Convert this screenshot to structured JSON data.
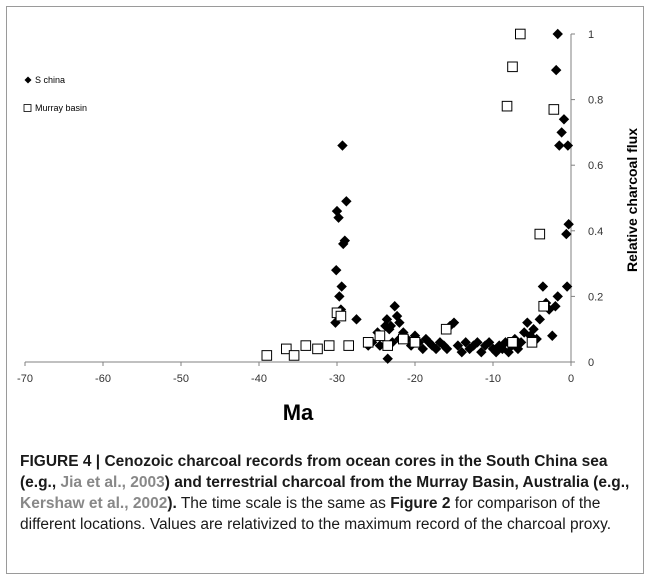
{
  "chart_data": {
    "type": "scatter",
    "xlabel": "Ma",
    "ylabel": "Relative charcoal flux",
    "xlim": [
      -70,
      0
    ],
    "ylim": [
      0,
      1
    ],
    "x_ticks": [
      -70,
      -60,
      -50,
      -40,
      -30,
      -20,
      -10,
      0
    ],
    "y_ticks": [
      0,
      0.2,
      0.4,
      0.6,
      0.8,
      1
    ],
    "y_axis_side": "right",
    "legend_position": "top-left",
    "grid": false,
    "series": [
      {
        "name": "S china",
        "marker": "filled-diamond",
        "color": "#000000",
        "points": [
          [
            -29.3,
            0.66
          ],
          [
            -28.8,
            0.49
          ],
          [
            -29.0,
            0.37
          ],
          [
            -29.2,
            0.36
          ],
          [
            -29.8,
            0.44
          ],
          [
            -30.0,
            0.46
          ],
          [
            -30.1,
            0.28
          ],
          [
            -29.4,
            0.23
          ],
          [
            -29.7,
            0.2
          ],
          [
            -29.5,
            0.16
          ],
          [
            -30.2,
            0.12
          ],
          [
            -27.5,
            0.13
          ],
          [
            -26.0,
            0.05
          ],
          [
            -25.5,
            0.06
          ],
          [
            -24.8,
            0.09
          ],
          [
            -24.5,
            0.05
          ],
          [
            -23.8,
            0.11
          ],
          [
            -23.6,
            0.13
          ],
          [
            -23.3,
            0.1
          ],
          [
            -23.1,
            0.11
          ],
          [
            -22.9,
            0.06
          ],
          [
            -22.6,
            0.17
          ],
          [
            -22.3,
            0.14
          ],
          [
            -22.0,
            0.12
          ],
          [
            -21.5,
            0.09
          ],
          [
            -21.0,
            0.07
          ],
          [
            -20.5,
            0.05
          ],
          [
            -20.0,
            0.08
          ],
          [
            -19.5,
            0.06
          ],
          [
            -19.0,
            0.04
          ],
          [
            -18.6,
            0.07
          ],
          [
            -18.2,
            0.06
          ],
          [
            -17.8,
            0.05
          ],
          [
            -17.3,
            0.04
          ],
          [
            -16.8,
            0.06
          ],
          [
            -16.3,
            0.05
          ],
          [
            -15.9,
            0.04
          ],
          [
            -15.5,
            0.11
          ],
          [
            -15.0,
            0.12
          ],
          [
            -14.5,
            0.05
          ],
          [
            -14.0,
            0.03
          ],
          [
            -13.5,
            0.06
          ],
          [
            -13.0,
            0.04
          ],
          [
            -12.5,
            0.05
          ],
          [
            -12.0,
            0.06
          ],
          [
            -11.5,
            0.03
          ],
          [
            -11.0,
            0.05
          ],
          [
            -10.5,
            0.06
          ],
          [
            -10.0,
            0.04
          ],
          [
            -9.6,
            0.03
          ],
          [
            -9.2,
            0.05
          ],
          [
            -8.8,
            0.04
          ],
          [
            -8.4,
            0.06
          ],
          [
            -8.0,
            0.03
          ],
          [
            -7.6,
            0.05
          ],
          [
            -7.2,
            0.07
          ],
          [
            -6.8,
            0.04
          ],
          [
            -6.4,
            0.06
          ],
          [
            -6.0,
            0.09
          ],
          [
            -5.6,
            0.12
          ],
          [
            -5.2,
            0.08
          ],
          [
            -4.8,
            0.1
          ],
          [
            -4.4,
            0.07
          ],
          [
            -4.0,
            0.13
          ],
          [
            -3.6,
            0.23
          ],
          [
            -3.2,
            0.18
          ],
          [
            -2.8,
            0.16
          ],
          [
            -2.4,
            0.08
          ],
          [
            -2.0,
            0.17
          ],
          [
            -1.7,
            0.2
          ],
          [
            -1.5,
            0.66
          ],
          [
            -1.2,
            0.7
          ],
          [
            -0.9,
            0.74
          ],
          [
            -0.6,
            0.39
          ],
          [
            -0.3,
            0.42
          ],
          [
            -0.4,
            0.66
          ],
          [
            -0.5,
            0.23
          ],
          [
            -1.9,
            0.89
          ],
          [
            -1.7,
            1.0
          ],
          [
            -23.5,
            0.01
          ],
          [
            -22.0,
            0.07
          ]
        ]
      },
      {
        "name": "Murray basin",
        "marker": "open-square",
        "color": "#000000",
        "points": [
          [
            -39.0,
            0.02
          ],
          [
            -36.5,
            0.04
          ],
          [
            -35.5,
            0.02
          ],
          [
            -34.0,
            0.05
          ],
          [
            -32.5,
            0.04
          ],
          [
            -31.0,
            0.05
          ],
          [
            -30.0,
            0.15
          ],
          [
            -29.5,
            0.14
          ],
          [
            -28.5,
            0.05
          ],
          [
            -26.0,
            0.06
          ],
          [
            -24.5,
            0.08
          ],
          [
            -23.5,
            0.05
          ],
          [
            -21.5,
            0.07
          ],
          [
            -20.0,
            0.06
          ],
          [
            -16.0,
            0.1
          ],
          [
            -7.5,
            0.06
          ],
          [
            -5.0,
            0.06
          ],
          [
            -4.0,
            0.39
          ],
          [
            -3.5,
            0.17
          ],
          [
            -2.2,
            0.77
          ],
          [
            -8.2,
            0.78
          ],
          [
            -7.5,
            0.9
          ],
          [
            -6.5,
            1.0
          ]
        ]
      }
    ]
  },
  "caption": {
    "figure_label": "FIGURE 4 | ",
    "bold_part1": "Cenozoic charcoal records from ocean cores in the South China sea (e.g., ",
    "ref1": "Jia et al., 2003",
    "bold_part2": ") and terrestrial charcoal from the Murray Basin, Australia (e.g., ",
    "ref2": "Kershaw et al., 2002",
    "bold_part3": ").",
    "normal_part1": " The time scale is the same as ",
    "figure_ref": "Figure 2",
    "normal_part2": " for comparison of the different locations. Values are relativized to the maximum record of the charcoal proxy."
  }
}
